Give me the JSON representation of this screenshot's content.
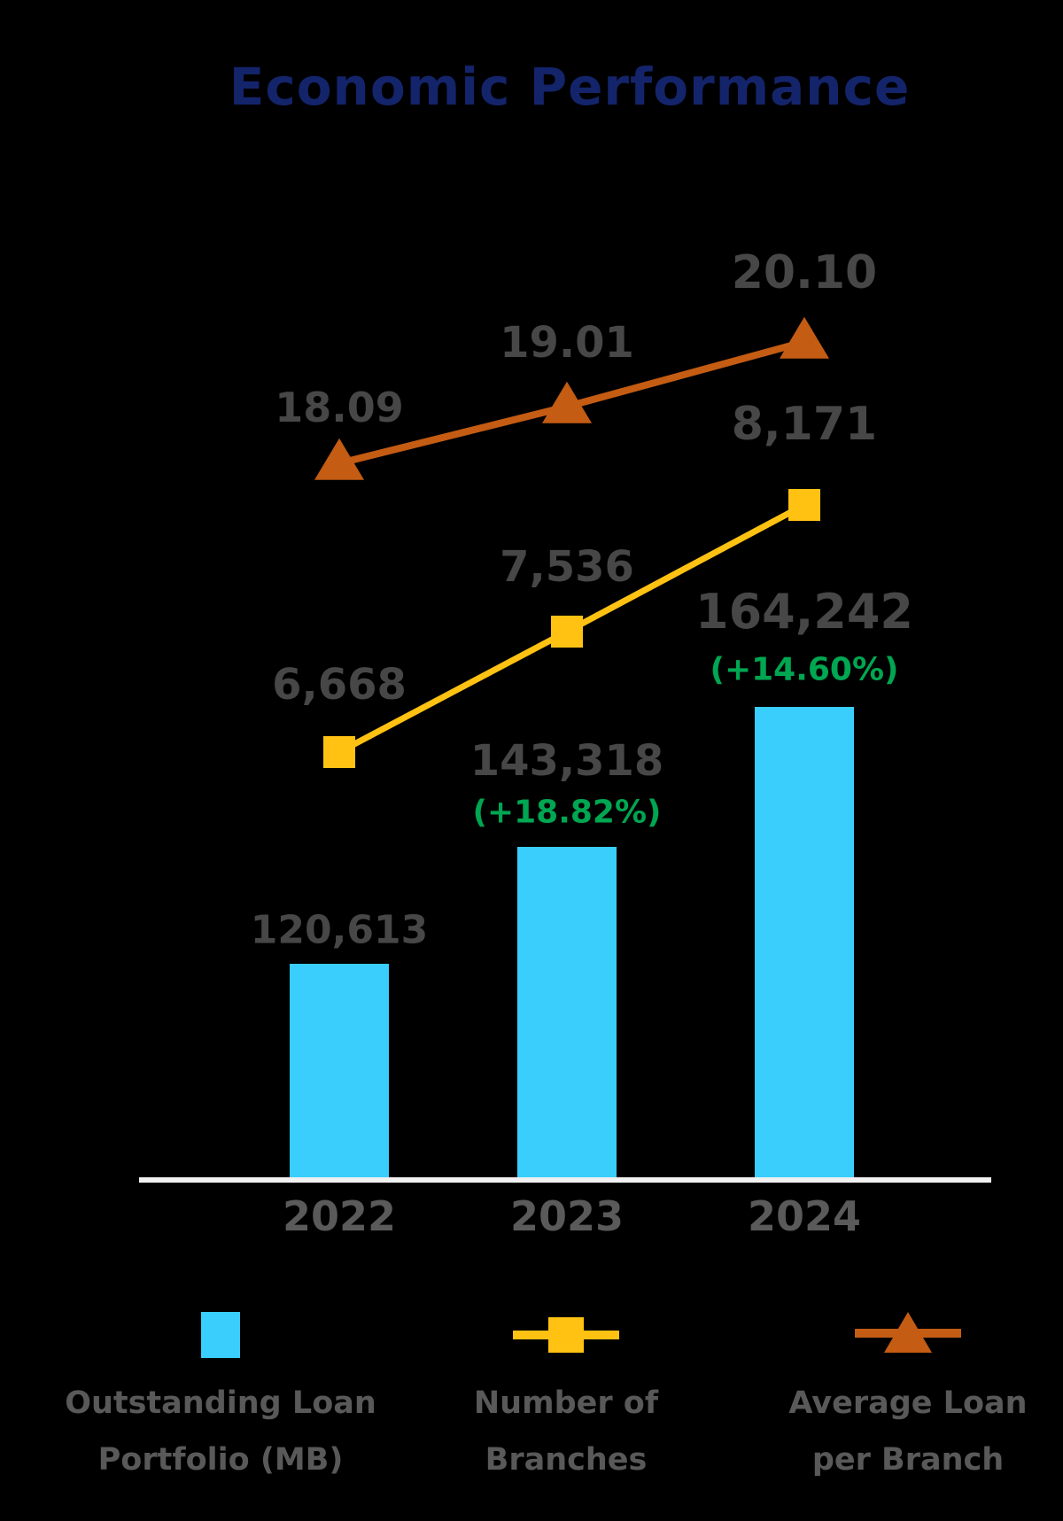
{
  "title": "Economic Performance",
  "colors": {
    "background": "#000000",
    "title": "#14246B",
    "bar": "#39CEFC",
    "branches_line": "#FFC213",
    "avg_loan_line": "#C45C13",
    "value_label": "#474747",
    "growth_label": "#00A651",
    "axis_line": "#F1F1F1",
    "year_label": "#5A5A5A",
    "legend_label": "#595959"
  },
  "chart_data": {
    "type": "combo",
    "categories": [
      "2022",
      "2023",
      "2024"
    ],
    "series": [
      {
        "name": "Outstanding Loan Portfolio (MB)",
        "type": "bar",
        "values": [
          120613,
          143318,
          164242
        ],
        "value_labels": [
          "120,613",
          "143,318",
          "164,242"
        ],
        "growth_labels": [
          null,
          "(+18.82%)",
          "(+14.60%)"
        ]
      },
      {
        "name": "Number of Branches",
        "type": "line",
        "marker": "square",
        "values": [
          6668,
          7536,
          8171
        ],
        "value_labels": [
          "6,668",
          "7,536",
          "8,171"
        ]
      },
      {
        "name": "Average Loan per Branch",
        "type": "line",
        "marker": "triangle",
        "values": [
          18.09,
          19.01,
          20.1
        ],
        "value_labels": [
          "18.09",
          "19.01",
          "20.10"
        ]
      }
    ],
    "grid": false,
    "y_axis_visible": false,
    "legend_position": "bottom"
  },
  "legend": {
    "items": [
      {
        "swatch": "bar",
        "lines": [
          "Outstanding Loan",
          "Portfolio (MB)"
        ]
      },
      {
        "swatch": "square-line",
        "lines": [
          "Number of",
          "Branches"
        ]
      },
      {
        "swatch": "triangle-line",
        "lines": [
          "Average Loan",
          "per Branch"
        ]
      }
    ]
  }
}
